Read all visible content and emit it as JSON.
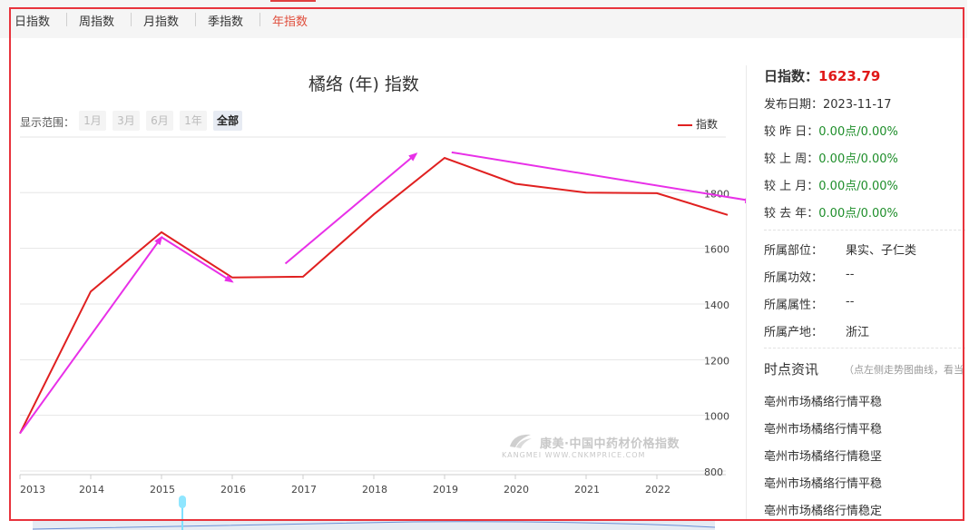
{
  "tabs": [
    {
      "label": "日指数",
      "active": false
    },
    {
      "label": "周指数",
      "active": false
    },
    {
      "label": "月指数",
      "active": false
    },
    {
      "label": "季指数",
      "active": false
    },
    {
      "label": "年指数",
      "active": true
    }
  ],
  "range": {
    "label": "显示范围：",
    "options": [
      "1月",
      "3月",
      "6月",
      "1年",
      "全部"
    ],
    "selected": "全部"
  },
  "watermark": {
    "cn": "康美·中国中药材价格指数",
    "en": "KANGMEI  WWW.CNKMPRICE.COM"
  },
  "colors": {
    "line": "#e02020",
    "annotation": "#e830e8",
    "green": "#1e8e2a",
    "accent": "#e04e3c"
  },
  "chart_data": {
    "type": "line",
    "title": "橘络 (年) 指数",
    "x": [
      "2013",
      "2014",
      "2015",
      "2016",
      "2017",
      "2018",
      "2019",
      "2020",
      "2021",
      "2022",
      "2023"
    ],
    "x_tick_labels": [
      "2013",
      "2014",
      "2015",
      "2016",
      "2017",
      "2018",
      "2019",
      "2020",
      "2021",
      "2022"
    ],
    "series": [
      {
        "name": "指数",
        "values": [
          935,
          1445,
          1658,
          1495,
          1498,
          1722,
          1925,
          1832,
          1800,
          1798,
          1720
        ]
      }
    ],
    "yticks": [
      800,
      1000,
      1200,
      1400,
      1600,
      1800
    ],
    "ylim": [
      800,
      2000
    ],
    "grid": true,
    "legend": "top-right",
    "annotations": [
      {
        "type": "arrow",
        "from": [
          "2013",
          935
        ],
        "to": [
          "2015",
          1640
        ]
      },
      {
        "type": "arrow",
        "from": [
          "2015",
          1640
        ],
        "to": [
          "2016",
          1480
        ]
      },
      {
        "type": "arrow",
        "from": [
          "2016.75",
          1545
        ],
        "to": [
          "2018.6",
          1940
        ]
      },
      {
        "type": "arrow",
        "from": [
          "2019.1",
          1945
        ],
        "to": [
          "2023.35",
          1770
        ]
      }
    ]
  },
  "info": {
    "daily_label": "日指数：",
    "daily_value": "1623.79",
    "date_label": "发布日期：",
    "date_value": "2023-11-17",
    "changes": [
      {
        "label": "较 昨 日：",
        "value": "0.00点/0.00%"
      },
      {
        "label": "较 上 周：",
        "value": "0.00点/0.00%"
      },
      {
        "label": "较 上 月：",
        "value": "0.00点/0.00%"
      },
      {
        "label": "较 去 年：",
        "value": "0.00点/0.00%"
      }
    ],
    "attributes": [
      {
        "label": "所属部位：",
        "value": "果实、子仁类"
      },
      {
        "label": "所属功效：",
        "value": "--"
      },
      {
        "label": "所属属性：",
        "value": "--"
      },
      {
        "label": "所属产地：",
        "value": "浙江"
      }
    ]
  },
  "news": {
    "title": "时点资讯",
    "hint": "（点左侧走势图曲线，看当",
    "items": [
      "亳州市场橘络行情平稳",
      "亳州市场橘络行情平稳",
      "亳州市场橘络行情稳坚",
      "亳州市场橘络行情平稳",
      "亳州市场橘络行情稳定"
    ]
  }
}
